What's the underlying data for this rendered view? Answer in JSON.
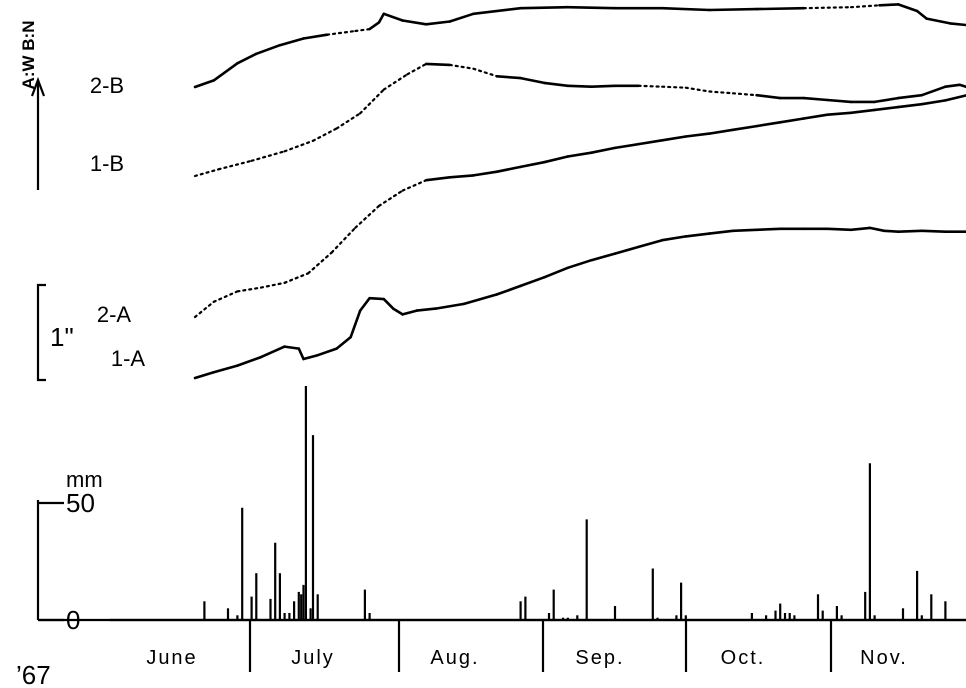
{
  "chart_data": {
    "type": "line",
    "title": "",
    "year_label": "’67",
    "orientation_label": "A:W B:N",
    "displacement_scale_label": "1\"",
    "rain_unit": "mm",
    "rain_ticks": [
      {
        "label": "0",
        "value": 0
      },
      {
        "label": "50",
        "value": 50
      }
    ],
    "months": [
      "June",
      "July",
      "Aug.",
      "Sep.",
      "Oct.",
      "Nov."
    ],
    "x_unit": "day",
    "x_range": [
      0,
      183
    ],
    "tilt_series": [
      {
        "name": "2-B",
        "unit": "inch",
        "points": [
          [
            18,
            0.8
          ],
          [
            22,
            0.87
          ],
          [
            27,
            1.05
          ],
          [
            31,
            1.15
          ],
          [
            36,
            1.24
          ],
          [
            41,
            1.31
          ],
          [
            46,
            1.35
          ],
          [
            52,
            1.39
          ],
          [
            55,
            1.41
          ],
          [
            57,
            1.48
          ],
          [
            58,
            1.57
          ],
          [
            62,
            1.5
          ],
          [
            67,
            1.46
          ],
          [
            72,
            1.49
          ],
          [
            77,
            1.57
          ],
          [
            87,
            1.63
          ],
          [
            97,
            1.64
          ],
          [
            107,
            1.63
          ],
          [
            117,
            1.63
          ],
          [
            127,
            1.61
          ],
          [
            137,
            1.62
          ],
          [
            147,
            1.63
          ],
          [
            157,
            1.64
          ],
          [
            163,
            1.66
          ],
          [
            167,
            1.67
          ],
          [
            171,
            1.6
          ],
          [
            173,
            1.52
          ],
          [
            178,
            1.47
          ],
          [
            182,
            1.45
          ]
        ],
        "dotted": [
          [
            47,
            55
          ],
          [
            150,
            163
          ]
        ]
      },
      {
        "name": "1-B",
        "unit": "inch",
        "points": [
          [
            18,
            0.25
          ],
          [
            23,
            0.32
          ],
          [
            30,
            0.41
          ],
          [
            37,
            0.51
          ],
          [
            43,
            0.62
          ],
          [
            48,
            0.75
          ],
          [
            53,
            0.91
          ],
          [
            58,
            1.16
          ],
          [
            63,
            1.32
          ],
          [
            67,
            1.43
          ],
          [
            72,
            1.42
          ],
          [
            77,
            1.38
          ],
          [
            82,
            1.3
          ],
          [
            87,
            1.28
          ],
          [
            92,
            1.23
          ],
          [
            97,
            1.2
          ],
          [
            102,
            1.19
          ],
          [
            107,
            1.2
          ],
          [
            112,
            1.2
          ],
          [
            117,
            1.19
          ],
          [
            122,
            1.18
          ],
          [
            127,
            1.14
          ],
          [
            132,
            1.12
          ],
          [
            137,
            1.1
          ],
          [
            142,
            1.07
          ],
          [
            147,
            1.07
          ],
          [
            152,
            1.05
          ],
          [
            157,
            1.03
          ],
          [
            162,
            1.03
          ],
          [
            167,
            1.07
          ],
          [
            172,
            1.1
          ],
          [
            177,
            1.19
          ],
          [
            180,
            1.21
          ],
          [
            182,
            1.18
          ]
        ],
        "dotted": [
          [
            18,
            67
          ],
          [
            72,
            82
          ],
          [
            111,
            136
          ]
        ]
      },
      {
        "name": "2-A",
        "unit": "inch",
        "points": [
          [
            18,
            -0.13
          ],
          [
            22,
            0.03
          ],
          [
            27,
            0.14
          ],
          [
            32,
            0.18
          ],
          [
            37,
            0.23
          ],
          [
            42,
            0.33
          ],
          [
            47,
            0.55
          ],
          [
            52,
            0.81
          ],
          [
            57,
            1.04
          ],
          [
            62,
            1.2
          ],
          [
            67,
            1.31
          ],
          [
            72,
            1.34
          ],
          [
            77,
            1.36
          ],
          [
            82,
            1.4
          ],
          [
            87,
            1.45
          ],
          [
            92,
            1.5
          ],
          [
            97,
            1.56
          ],
          [
            102,
            1.6
          ],
          [
            107,
            1.65
          ],
          [
            112,
            1.69
          ],
          [
            117,
            1.73
          ],
          [
            122,
            1.77
          ],
          [
            127,
            1.8
          ],
          [
            132,
            1.84
          ],
          [
            137,
            1.88
          ],
          [
            142,
            1.92
          ],
          [
            147,
            1.96
          ],
          [
            152,
            2.0
          ],
          [
            157,
            2.02
          ],
          [
            162,
            2.05
          ],
          [
            167,
            2.08
          ],
          [
            172,
            2.11
          ],
          [
            177,
            2.15
          ],
          [
            182,
            2.21
          ]
        ],
        "dotted": [
          [
            18,
            66
          ]
        ]
      },
      {
        "name": "1-A",
        "unit": "inch",
        "points": [
          [
            18,
            -0.53
          ],
          [
            22,
            -0.47
          ],
          [
            27,
            -0.4
          ],
          [
            32,
            -0.31
          ],
          [
            37,
            -0.2
          ],
          [
            40,
            -0.22
          ],
          [
            41,
            -0.33
          ],
          [
            44,
            -0.29
          ],
          [
            48,
            -0.22
          ],
          [
            51,
            -0.1
          ],
          [
            53,
            0.18
          ],
          [
            55,
            0.31
          ],
          [
            58,
            0.3
          ],
          [
            60,
            0.2
          ],
          [
            62,
            0.14
          ],
          [
            65,
            0.18
          ],
          [
            69,
            0.2
          ],
          [
            75,
            0.25
          ],
          [
            82,
            0.35
          ],
          [
            87,
            0.44
          ],
          [
            92,
            0.53
          ],
          [
            97,
            0.63
          ],
          [
            102,
            0.71
          ],
          [
            107,
            0.78
          ],
          [
            112,
            0.85
          ],
          [
            117,
            0.92
          ],
          [
            122,
            0.96
          ],
          [
            127,
            0.99
          ],
          [
            132,
            1.02
          ],
          [
            137,
            1.03
          ],
          [
            142,
            1.04
          ],
          [
            147,
            1.04
          ],
          [
            152,
            1.04
          ],
          [
            157,
            1.03
          ],
          [
            161,
            1.05
          ],
          [
            164,
            1.02
          ],
          [
            167,
            1.01
          ],
          [
            172,
            1.02
          ],
          [
            177,
            1.01
          ],
          [
            182,
            1.01
          ]
        ],
        "dotted": []
      }
    ],
    "rainfall": {
      "unit": "mm",
      "ylim": [
        0,
        50
      ],
      "values": [
        [
          20,
          8
        ],
        [
          25,
          5
        ],
        [
          27,
          2
        ],
        [
          28,
          48
        ],
        [
          30,
          10
        ],
        [
          31,
          20
        ],
        [
          34,
          9
        ],
        [
          35,
          33
        ],
        [
          36,
          20
        ],
        [
          37,
          3
        ],
        [
          38,
          3
        ],
        [
          39,
          8
        ],
        [
          40,
          12
        ],
        [
          40.5,
          11
        ],
        [
          41,
          15
        ],
        [
          41.5,
          100
        ],
        [
          42.5,
          5
        ],
        [
          43,
          79
        ],
        [
          44,
          11
        ],
        [
          54,
          13
        ],
        [
          55,
          3
        ],
        [
          87,
          8
        ],
        [
          88,
          10
        ],
        [
          93,
          3
        ],
        [
          94,
          13
        ],
        [
          96,
          1
        ],
        [
          97,
          1
        ],
        [
          99,
          2
        ],
        [
          101,
          43
        ],
        [
          107,
          6
        ],
        [
          115,
          22
        ],
        [
          116,
          1
        ],
        [
          120,
          2
        ],
        [
          121,
          16
        ],
        [
          122,
          2
        ],
        [
          136,
          3
        ],
        [
          139,
          2
        ],
        [
          141,
          4
        ],
        [
          142,
          7
        ],
        [
          143,
          3
        ],
        [
          144,
          3
        ],
        [
          145,
          2
        ],
        [
          150,
          11
        ],
        [
          151,
          4
        ],
        [
          154,
          6
        ],
        [
          155,
          2
        ],
        [
          160,
          12
        ],
        [
          161,
          67
        ],
        [
          162,
          2
        ],
        [
          168,
          5
        ],
        [
          171,
          21
        ],
        [
          172,
          2
        ],
        [
          174,
          11
        ],
        [
          177,
          8
        ]
      ]
    }
  }
}
